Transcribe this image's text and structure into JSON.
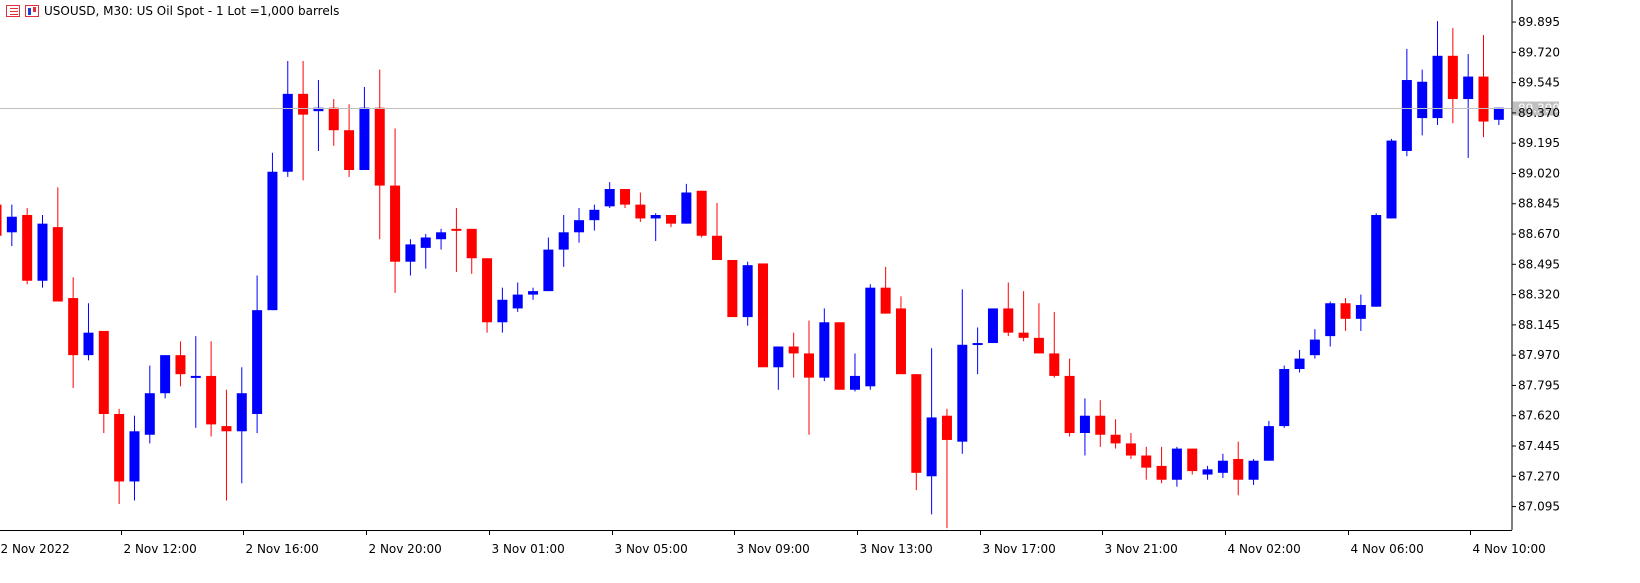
{
  "header": {
    "list_icon": "list-icon",
    "chart_icon": "candlestick-icon",
    "title": "USOUSD, M30:  US Oil Spot - 1 Lot =1,000 barrels"
  },
  "colors": {
    "bull": "#0000ff",
    "bear": "#ff0000",
    "current_line": "#c0c0c0",
    "current_label_bg": "#c0c0c0"
  },
  "chart_data": {
    "type": "candlestick",
    "symbol": "USOUSD",
    "timeframe": "M30",
    "y_ticks": [
      "89.895",
      "89.720",
      "89.545",
      "89.370",
      "89.195",
      "89.020",
      "88.845",
      "88.670",
      "88.495",
      "88.320",
      "88.145",
      "87.970",
      "87.795",
      "87.620",
      "87.445",
      "87.270",
      "87.095"
    ],
    "x_ticks": [
      "2 Nov 2022",
      "2 Nov 12:00",
      "2 Nov 16:00",
      "2 Nov 20:00",
      "3 Nov 01:00",
      "3 Nov 05:00",
      "3 Nov 09:00",
      "3 Nov 13:00",
      "3 Nov 17:00",
      "3 Nov 21:00",
      "4 Nov 02:00",
      "4 Nov 06:00",
      "4 Nov 10:00"
    ],
    "current_price": "89.399",
    "ylim": [
      87.0,
      89.93
    ],
    "candles": [
      {
        "o": 88.84,
        "h": 88.84,
        "l": 88.6,
        "c": 88.66
      },
      {
        "o": 88.68,
        "h": 88.84,
        "l": 88.6,
        "c": 88.77
      },
      {
        "o": 88.78,
        "h": 88.82,
        "l": 88.38,
        "c": 88.4
      },
      {
        "o": 88.4,
        "h": 88.78,
        "l": 88.36,
        "c": 88.73
      },
      {
        "o": 88.71,
        "h": 88.94,
        "l": 88.28,
        "c": 88.28
      },
      {
        "o": 88.3,
        "h": 88.42,
        "l": 87.78,
        "c": 87.97
      },
      {
        "o": 87.97,
        "h": 88.27,
        "l": 87.94,
        "c": 88.1
      },
      {
        "o": 88.11,
        "h": 88.11,
        "l": 87.52,
        "c": 87.63
      },
      {
        "o": 87.63,
        "h": 87.66,
        "l": 87.11,
        "c": 87.24
      },
      {
        "o": 87.24,
        "h": 87.62,
        "l": 87.13,
        "c": 87.53
      },
      {
        "o": 87.51,
        "h": 87.91,
        "l": 87.46,
        "c": 87.75
      },
      {
        "o": 87.75,
        "h": 87.97,
        "l": 87.72,
        "c": 87.97
      },
      {
        "o": 87.97,
        "h": 88.05,
        "l": 87.79,
        "c": 87.86
      },
      {
        "o": 87.84,
        "h": 88.08,
        "l": 87.55,
        "c": 87.85
      },
      {
        "o": 87.85,
        "h": 88.05,
        "l": 87.5,
        "c": 87.57
      },
      {
        "o": 87.56,
        "h": 87.77,
        "l": 87.13,
        "c": 87.53
      },
      {
        "o": 87.53,
        "h": 87.9,
        "l": 87.23,
        "c": 87.75
      },
      {
        "o": 87.63,
        "h": 88.43,
        "l": 87.52,
        "c": 88.23
      },
      {
        "o": 88.23,
        "h": 89.14,
        "l": 88.23,
        "c": 89.03
      },
      {
        "o": 89.03,
        "h": 89.67,
        "l": 89.0,
        "c": 89.48
      },
      {
        "o": 89.48,
        "h": 89.67,
        "l": 88.98,
        "c": 89.36
      },
      {
        "o": 89.38,
        "h": 89.56,
        "l": 89.15,
        "c": 89.4
      },
      {
        "o": 89.4,
        "h": 89.45,
        "l": 89.18,
        "c": 89.27
      },
      {
        "o": 89.27,
        "h": 89.42,
        "l": 89.0,
        "c": 89.04
      },
      {
        "o": 89.04,
        "h": 89.52,
        "l": 89.04,
        "c": 89.4
      },
      {
        "o": 89.4,
        "h": 89.62,
        "l": 88.64,
        "c": 88.95
      },
      {
        "o": 88.95,
        "h": 89.28,
        "l": 88.33,
        "c": 88.51
      },
      {
        "o": 88.51,
        "h": 88.64,
        "l": 88.43,
        "c": 88.61
      },
      {
        "o": 88.59,
        "h": 88.67,
        "l": 88.47,
        "c": 88.65
      },
      {
        "o": 88.64,
        "h": 88.7,
        "l": 88.58,
        "c": 88.68
      },
      {
        "o": 88.7,
        "h": 88.82,
        "l": 88.45,
        "c": 88.69
      },
      {
        "o": 88.7,
        "h": 88.7,
        "l": 88.44,
        "c": 88.53
      },
      {
        "o": 88.53,
        "h": 88.53,
        "l": 88.1,
        "c": 88.16
      },
      {
        "o": 88.16,
        "h": 88.36,
        "l": 88.1,
        "c": 88.29
      },
      {
        "o": 88.24,
        "h": 88.39,
        "l": 88.22,
        "c": 88.32
      },
      {
        "o": 88.32,
        "h": 88.36,
        "l": 88.29,
        "c": 88.34
      },
      {
        "o": 88.34,
        "h": 88.65,
        "l": 88.34,
        "c": 88.58
      },
      {
        "o": 88.58,
        "h": 88.78,
        "l": 88.48,
        "c": 88.68
      },
      {
        "o": 88.68,
        "h": 88.82,
        "l": 88.62,
        "c": 88.75
      },
      {
        "o": 88.75,
        "h": 88.84,
        "l": 88.69,
        "c": 88.81
      },
      {
        "o": 88.83,
        "h": 88.97,
        "l": 88.82,
        "c": 88.93
      },
      {
        "o": 88.93,
        "h": 88.93,
        "l": 88.82,
        "c": 88.84
      },
      {
        "o": 88.84,
        "h": 88.91,
        "l": 88.74,
        "c": 88.76
      },
      {
        "o": 88.76,
        "h": 88.79,
        "l": 88.63,
        "c": 88.78
      },
      {
        "o": 88.78,
        "h": 88.78,
        "l": 88.71,
        "c": 88.73
      },
      {
        "o": 88.73,
        "h": 88.96,
        "l": 88.73,
        "c": 88.91
      },
      {
        "o": 88.92,
        "h": 88.92,
        "l": 88.65,
        "c": 88.66
      },
      {
        "o": 88.66,
        "h": 88.85,
        "l": 88.52,
        "c": 88.52
      },
      {
        "o": 88.52,
        "h": 88.52,
        "l": 88.19,
        "c": 88.19
      },
      {
        "o": 88.19,
        "h": 88.51,
        "l": 88.14,
        "c": 88.49
      },
      {
        "o": 88.5,
        "h": 88.5,
        "l": 87.9,
        "c": 87.9
      },
      {
        "o": 87.9,
        "h": 88.02,
        "l": 87.77,
        "c": 88.02
      },
      {
        "o": 88.02,
        "h": 88.1,
        "l": 87.84,
        "c": 87.98
      },
      {
        "o": 87.98,
        "h": 88.17,
        "l": 87.51,
        "c": 87.84
      },
      {
        "o": 87.84,
        "h": 88.24,
        "l": 87.82,
        "c": 88.16
      },
      {
        "o": 88.16,
        "h": 88.16,
        "l": 87.77,
        "c": 87.77
      },
      {
        "o": 87.77,
        "h": 87.98,
        "l": 87.76,
        "c": 87.85
      },
      {
        "o": 87.79,
        "h": 88.38,
        "l": 87.77,
        "c": 88.36
      },
      {
        "o": 88.36,
        "h": 88.48,
        "l": 88.21,
        "c": 88.21
      },
      {
        "o": 88.24,
        "h": 88.31,
        "l": 87.86,
        "c": 87.86
      },
      {
        "o": 87.86,
        "h": 87.86,
        "l": 87.19,
        "c": 87.29
      },
      {
        "o": 87.27,
        "h": 88.01,
        "l": 87.05,
        "c": 87.61
      },
      {
        "o": 87.62,
        "h": 87.66,
        "l": 86.97,
        "c": 87.48
      },
      {
        "o": 87.47,
        "h": 88.35,
        "l": 87.4,
        "c": 88.03
      },
      {
        "o": 88.03,
        "h": 88.13,
        "l": 87.86,
        "c": 88.04
      },
      {
        "o": 88.04,
        "h": 88.24,
        "l": 88.04,
        "c": 88.24
      },
      {
        "o": 88.24,
        "h": 88.39,
        "l": 88.08,
        "c": 88.1
      },
      {
        "o": 88.1,
        "h": 88.34,
        "l": 88.05,
        "c": 88.07
      },
      {
        "o": 88.07,
        "h": 88.27,
        "l": 87.98,
        "c": 87.98
      },
      {
        "o": 87.98,
        "h": 88.22,
        "l": 87.84,
        "c": 87.85
      },
      {
        "o": 87.85,
        "h": 87.95,
        "l": 87.5,
        "c": 87.52
      },
      {
        "o": 87.52,
        "h": 87.72,
        "l": 87.39,
        "c": 87.62
      },
      {
        "o": 87.62,
        "h": 87.71,
        "l": 87.44,
        "c": 87.51
      },
      {
        "o": 87.51,
        "h": 87.6,
        "l": 87.43,
        "c": 87.46
      },
      {
        "o": 87.46,
        "h": 87.52,
        "l": 87.37,
        "c": 87.39
      },
      {
        "o": 87.39,
        "h": 87.44,
        "l": 87.25,
        "c": 87.32
      },
      {
        "o": 87.33,
        "h": 87.44,
        "l": 87.23,
        "c": 87.25
      },
      {
        "o": 87.25,
        "h": 87.44,
        "l": 87.21,
        "c": 87.43
      },
      {
        "o": 87.43,
        "h": 87.43,
        "l": 87.28,
        "c": 87.3
      },
      {
        "o": 87.28,
        "h": 87.33,
        "l": 87.25,
        "c": 87.31
      },
      {
        "o": 87.29,
        "h": 87.4,
        "l": 87.26,
        "c": 87.36
      },
      {
        "o": 87.37,
        "h": 87.47,
        "l": 87.16,
        "c": 87.25
      },
      {
        "o": 87.25,
        "h": 87.37,
        "l": 87.22,
        "c": 87.36
      },
      {
        "o": 87.36,
        "h": 87.59,
        "l": 87.36,
        "c": 87.56
      },
      {
        "o": 87.56,
        "h": 87.91,
        "l": 87.55,
        "c": 87.89
      },
      {
        "o": 87.89,
        "h": 88.0,
        "l": 87.87,
        "c": 87.95
      },
      {
        "o": 87.97,
        "h": 88.12,
        "l": 87.95,
        "c": 88.06
      },
      {
        "o": 88.08,
        "h": 88.28,
        "l": 88.02,
        "c": 88.27
      },
      {
        "o": 88.27,
        "h": 88.3,
        "l": 88.11,
        "c": 88.18
      },
      {
        "o": 88.18,
        "h": 88.32,
        "l": 88.11,
        "c": 88.26
      },
      {
        "o": 88.25,
        "h": 88.79,
        "l": 88.25,
        "c": 88.78
      },
      {
        "o": 88.76,
        "h": 89.22,
        "l": 88.76,
        "c": 89.21
      },
      {
        "o": 89.15,
        "h": 89.74,
        "l": 89.12,
        "c": 89.56
      },
      {
        "o": 89.34,
        "h": 89.62,
        "l": 89.24,
        "c": 89.55
      },
      {
        "o": 89.34,
        "h": 89.9,
        "l": 89.3,
        "c": 89.7
      },
      {
        "o": 89.7,
        "h": 89.86,
        "l": 89.31,
        "c": 89.45
      },
      {
        "o": 89.45,
        "h": 89.71,
        "l": 89.11,
        "c": 89.58
      },
      {
        "o": 89.58,
        "h": 89.82,
        "l": 89.23,
        "c": 89.32
      },
      {
        "o": 89.33,
        "h": 89.4,
        "l": 89.3,
        "c": 89.4
      }
    ]
  }
}
